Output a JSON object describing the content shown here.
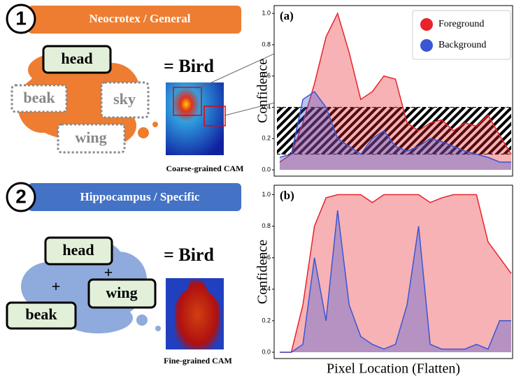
{
  "diagram": {
    "panels": [
      {
        "number": "1",
        "title": "Neocrotex / General",
        "concepts": [
          "head",
          "beak",
          "sky",
          "wing"
        ],
        "result": "= Bird",
        "caption": "Coarse-grained CAM"
      },
      {
        "number": "2",
        "title": "Hippocampus / Specific",
        "concepts": [
          "head",
          "beak",
          "wing"
        ],
        "operators": [
          "+",
          "+"
        ],
        "result": "= Bird",
        "caption": "Fine-grained CAM"
      }
    ]
  },
  "chart_data": [
    {
      "type": "area",
      "panel_label": "(a)",
      "y_label": "Confidence",
      "ylim": [
        -0.04,
        1.05
      ],
      "yticks": [
        {
          "value": 0,
          "label": "0.0"
        },
        {
          "value": 0.2,
          "label": "0.2"
        },
        {
          "value": 0.4,
          "label": "0.4"
        },
        {
          "value": 0.6,
          "label": "0.6"
        },
        {
          "value": 0.8,
          "label": "0.8"
        },
        {
          "value": 1,
          "label": "1.0"
        }
      ],
      "hatched_band": [
        0.1,
        0.4
      ],
      "legend": "upper right",
      "series": [
        {
          "name": "Foreground",
          "color": "#e8232a",
          "values": [
            0.05,
            0.1,
            0.3,
            0.55,
            0.85,
            1.0,
            0.75,
            0.45,
            0.5,
            0.6,
            0.58,
            0.3,
            0.25,
            0.3,
            0.32,
            0.25,
            0.3,
            0.28,
            0.35,
            0.22,
            0.1
          ]
        },
        {
          "name": "Background",
          "color": "#3a55d6",
          "values": [
            0.08,
            0.1,
            0.45,
            0.5,
            0.4,
            0.2,
            0.15,
            0.1,
            0.2,
            0.25,
            0.15,
            0.12,
            0.15,
            0.2,
            0.18,
            0.15,
            0.12,
            0.1,
            0.08,
            0.05,
            0.05
          ]
        }
      ]
    },
    {
      "type": "area",
      "panel_label": "(b)",
      "y_label": "Confidence",
      "x_label": "Pixel Location (Flatten)",
      "ylim": [
        -0.04,
        1.06
      ],
      "yticks": [
        {
          "value": 0,
          "label": "0.0"
        },
        {
          "value": 0.2,
          "label": "0.2"
        },
        {
          "value": 0.4,
          "label": "0.4"
        },
        {
          "value": 0.6,
          "label": "0.6"
        },
        {
          "value": 0.8,
          "label": "0.8"
        },
        {
          "value": 1,
          "label": "1.0"
        }
      ],
      "series": [
        {
          "color": "#e8232a",
          "values": [
            0.0,
            0.0,
            0.3,
            0.8,
            0.98,
            1.0,
            1.0,
            1.0,
            0.95,
            1.0,
            1.0,
            1.0,
            1.0,
            0.95,
            0.98,
            1.0,
            1.0,
            1.0,
            0.7,
            0.6,
            0.5
          ]
        },
        {
          "color": "#3a55d6",
          "values": [
            0.0,
            0.0,
            0.05,
            0.6,
            0.2,
            0.9,
            0.3,
            0.1,
            0.05,
            0.02,
            0.05,
            0.3,
            0.8,
            0.05,
            0.02,
            0.02,
            0.02,
            0.05,
            0.02,
            0.2,
            0.2
          ]
        }
      ]
    }
  ]
}
